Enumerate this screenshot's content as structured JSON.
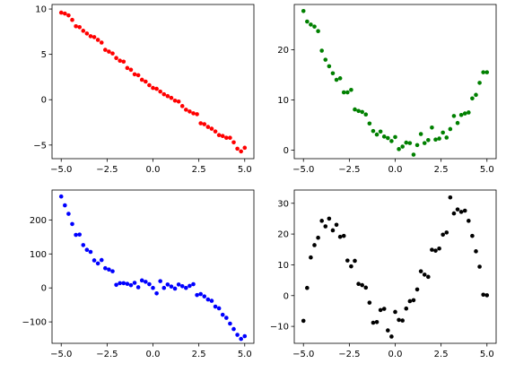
{
  "chart_data": [
    {
      "type": "scatter",
      "position": "top-left",
      "color": "#ff0000",
      "xlim": [
        -5.5,
        5.5
      ],
      "ylim": [
        -6.5,
        10.5
      ],
      "xticks": [
        -5,
        -2.5,
        0,
        2.5,
        5
      ],
      "xtick_labels": [
        "−5.0",
        "−2.5",
        "0.0",
        "2.5",
        "5.0"
      ],
      "yticks": [
        -5,
        0,
        5,
        10
      ],
      "ytick_labels": [
        "−5",
        "0",
        "5",
        "10"
      ],
      "x": [
        -5.0,
        -4.8,
        -4.6,
        -4.4,
        -4.2,
        -4.0,
        -3.8,
        -3.6,
        -3.4,
        -3.2,
        -3.0,
        -2.8,
        -2.6,
        -2.4,
        -2.2,
        -2.0,
        -1.8,
        -1.6,
        -1.4,
        -1.2,
        -1.0,
        -0.8,
        -0.6,
        -0.4,
        -0.2,
        0.0,
        0.2,
        0.4,
        0.6,
        0.8,
        1.0,
        1.2,
        1.4,
        1.6,
        1.8,
        2.0,
        2.2,
        2.4,
        2.6,
        2.8,
        3.0,
        3.2,
        3.4,
        3.6,
        3.8,
        4.0,
        4.2,
        4.4,
        4.6,
        4.8,
        5.0
      ],
      "y": [
        9.6,
        9.5,
        9.3,
        8.8,
        8.1,
        8.0,
        7.6,
        7.3,
        7.0,
        6.9,
        6.6,
        6.3,
        5.5,
        5.3,
        5.1,
        4.6,
        4.3,
        4.2,
        3.5,
        3.3,
        2.8,
        2.7,
        2.2,
        2.0,
        1.6,
        1.3,
        1.2,
        0.9,
        0.6,
        0.4,
        0.2,
        -0.1,
        -0.2,
        -0.7,
        -1.1,
        -1.3,
        -1.5,
        -1.6,
        -2.6,
        -2.7,
        -3.0,
        -3.2,
        -3.5,
        -3.9,
        -4.0,
        -4.2,
        -4.2,
        -4.7,
        -5.4,
        -5.7,
        -5.3
      ]
    },
    {
      "type": "scatter",
      "position": "top-right",
      "color": "#008000",
      "xlim": [
        -5.5,
        5.5
      ],
      "ylim": [
        -1.7,
        29.0
      ],
      "xticks": [
        -5,
        -2.5,
        0,
        2.5,
        5
      ],
      "xtick_labels": [
        "−5.0",
        "−2.5",
        "0.0",
        "2.5",
        "5.0"
      ],
      "yticks": [
        0,
        10,
        20
      ],
      "ytick_labels": [
        "0",
        "10",
        "20"
      ],
      "x": [
        -5.0,
        -4.8,
        -4.6,
        -4.4,
        -4.2,
        -4.0,
        -3.8,
        -3.6,
        -3.4,
        -3.2,
        -3.0,
        -2.8,
        -2.6,
        -2.4,
        -2.2,
        -2.0,
        -1.8,
        -1.6,
        -1.4,
        -1.2,
        -1.0,
        -0.8,
        -0.6,
        -0.4,
        -0.2,
        0.0,
        0.2,
        0.4,
        0.6,
        0.8,
        1.0,
        1.2,
        1.4,
        1.6,
        1.8,
        2.0,
        2.2,
        2.4,
        2.6,
        2.8,
        3.0,
        3.2,
        3.4,
        3.6,
        3.8,
        4.0,
        4.2,
        4.4,
        4.6,
        4.8,
        5.0
      ],
      "y": [
        27.7,
        25.6,
        25.0,
        24.6,
        23.7,
        19.8,
        18.0,
        16.7,
        15.3,
        14.0,
        14.3,
        11.5,
        11.5,
        12.0,
        8.1,
        7.8,
        7.6,
        7.1,
        5.3,
        3.8,
        3.1,
        3.7,
        2.7,
        2.4,
        1.8,
        2.6,
        0.2,
        0.7,
        1.5,
        1.4,
        -0.9,
        1.0,
        3.2,
        1.4,
        2.0,
        4.5,
        2.1,
        2.3,
        3.5,
        2.5,
        4.2,
        6.8,
        5.4,
        7.0,
        7.3,
        7.5,
        10.3,
        11.0,
        13.4,
        15.5,
        15.5
      ]
    },
    {
      "type": "scatter",
      "position": "bottom-left",
      "color": "#0000ff",
      "xlim": [
        -5.5,
        5.5
      ],
      "ylim": [
        -163,
        288
      ],
      "xticks": [
        -5,
        -2.5,
        0,
        2.5,
        5
      ],
      "xtick_labels": [
        "−5.0",
        "−2.5",
        "0.0",
        "2.5",
        "5.0"
      ],
      "yticks": [
        -100,
        0,
        100,
        200
      ],
      "ytick_labels": [
        "−100",
        "0",
        "100",
        "200"
      ],
      "x": [
        -5.0,
        -4.8,
        -4.6,
        -4.4,
        -4.2,
        -4.0,
        -3.8,
        -3.6,
        -3.4,
        -3.2,
        -3.0,
        -2.8,
        -2.6,
        -2.4,
        -2.2,
        -2.0,
        -1.8,
        -1.6,
        -1.4,
        -1.2,
        -1.0,
        -0.8,
        -0.6,
        -0.4,
        -0.2,
        0.0,
        0.2,
        0.4,
        0.6,
        0.8,
        1.0,
        1.2,
        1.4,
        1.6,
        1.8,
        2.0,
        2.2,
        2.4,
        2.6,
        2.8,
        3.0,
        3.2,
        3.4,
        3.6,
        3.8,
        4.0,
        4.2,
        4.4,
        4.6,
        4.8,
        5.0
      ],
      "y": [
        269,
        243,
        218,
        188,
        156,
        157,
        126,
        112,
        106,
        81,
        72,
        82,
        58,
        54,
        49,
        9,
        14,
        14,
        12,
        8,
        15,
        2,
        22,
        18,
        11,
        0,
        -16,
        20,
        0,
        10,
        4,
        -2,
        10,
        5,
        0,
        6,
        11,
        -21,
        -18,
        -25,
        -34,
        -38,
        -55,
        -60,
        -79,
        -88,
        -105,
        -121,
        -138,
        -150,
        -142
      ]
    },
    {
      "type": "scatter",
      "position": "bottom-right",
      "color": "#000000",
      "xlim": [
        -5.5,
        5.5
      ],
      "ylim": [
        -15.5,
        34.3
      ],
      "xticks": [
        -5,
        -2.5,
        0,
        2.5,
        5
      ],
      "xtick_labels": [
        "−5.0",
        "−2.5",
        "0.0",
        "2.5",
        "5.0"
      ],
      "yticks": [
        -10,
        0,
        10,
        20,
        30
      ],
      "ytick_labels": [
        "−10",
        "0",
        "10",
        "20",
        "30"
      ],
      "x": [
        -5.0,
        -4.8,
        -4.6,
        -4.4,
        -4.2,
        -4.0,
        -3.8,
        -3.6,
        -3.4,
        -3.2,
        -3.0,
        -2.8,
        -2.6,
        -2.4,
        -2.2,
        -2.0,
        -1.8,
        -1.6,
        -1.4,
        -1.2,
        -1.0,
        -0.8,
        -0.6,
        -0.4,
        -0.2,
        0.0,
        0.2,
        0.4,
        0.6,
        0.8,
        1.0,
        1.2,
        1.4,
        1.6,
        1.8,
        2.0,
        2.2,
        2.4,
        2.6,
        2.8,
        3.0,
        3.2,
        3.4,
        3.6,
        3.8,
        4.0,
        4.2,
        4.4,
        4.6,
        4.8,
        5.0
      ],
      "y": [
        -8.2,
        2.5,
        12.4,
        16.4,
        18.8,
        24.3,
        22.5,
        25.0,
        21.2,
        23.0,
        19.1,
        19.4,
        11.4,
        9.5,
        11.3,
        3.8,
        3.4,
        2.6,
        -2.3,
        -8.8,
        -8.6,
        -4.7,
        -4.3,
        -11.3,
        -13.3,
        -5.3,
        -7.9,
        -8.1,
        -4.2,
        -1.8,
        -1.5,
        2.0,
        7.9,
        6.8,
        6.1,
        14.9,
        14.6,
        15.3,
        19.8,
        20.5,
        31.9,
        26.7,
        28.0,
        27.2,
        27.6,
        24.3,
        19.4,
        14.4,
        9.4,
        0.3,
        0.1
      ]
    }
  ]
}
